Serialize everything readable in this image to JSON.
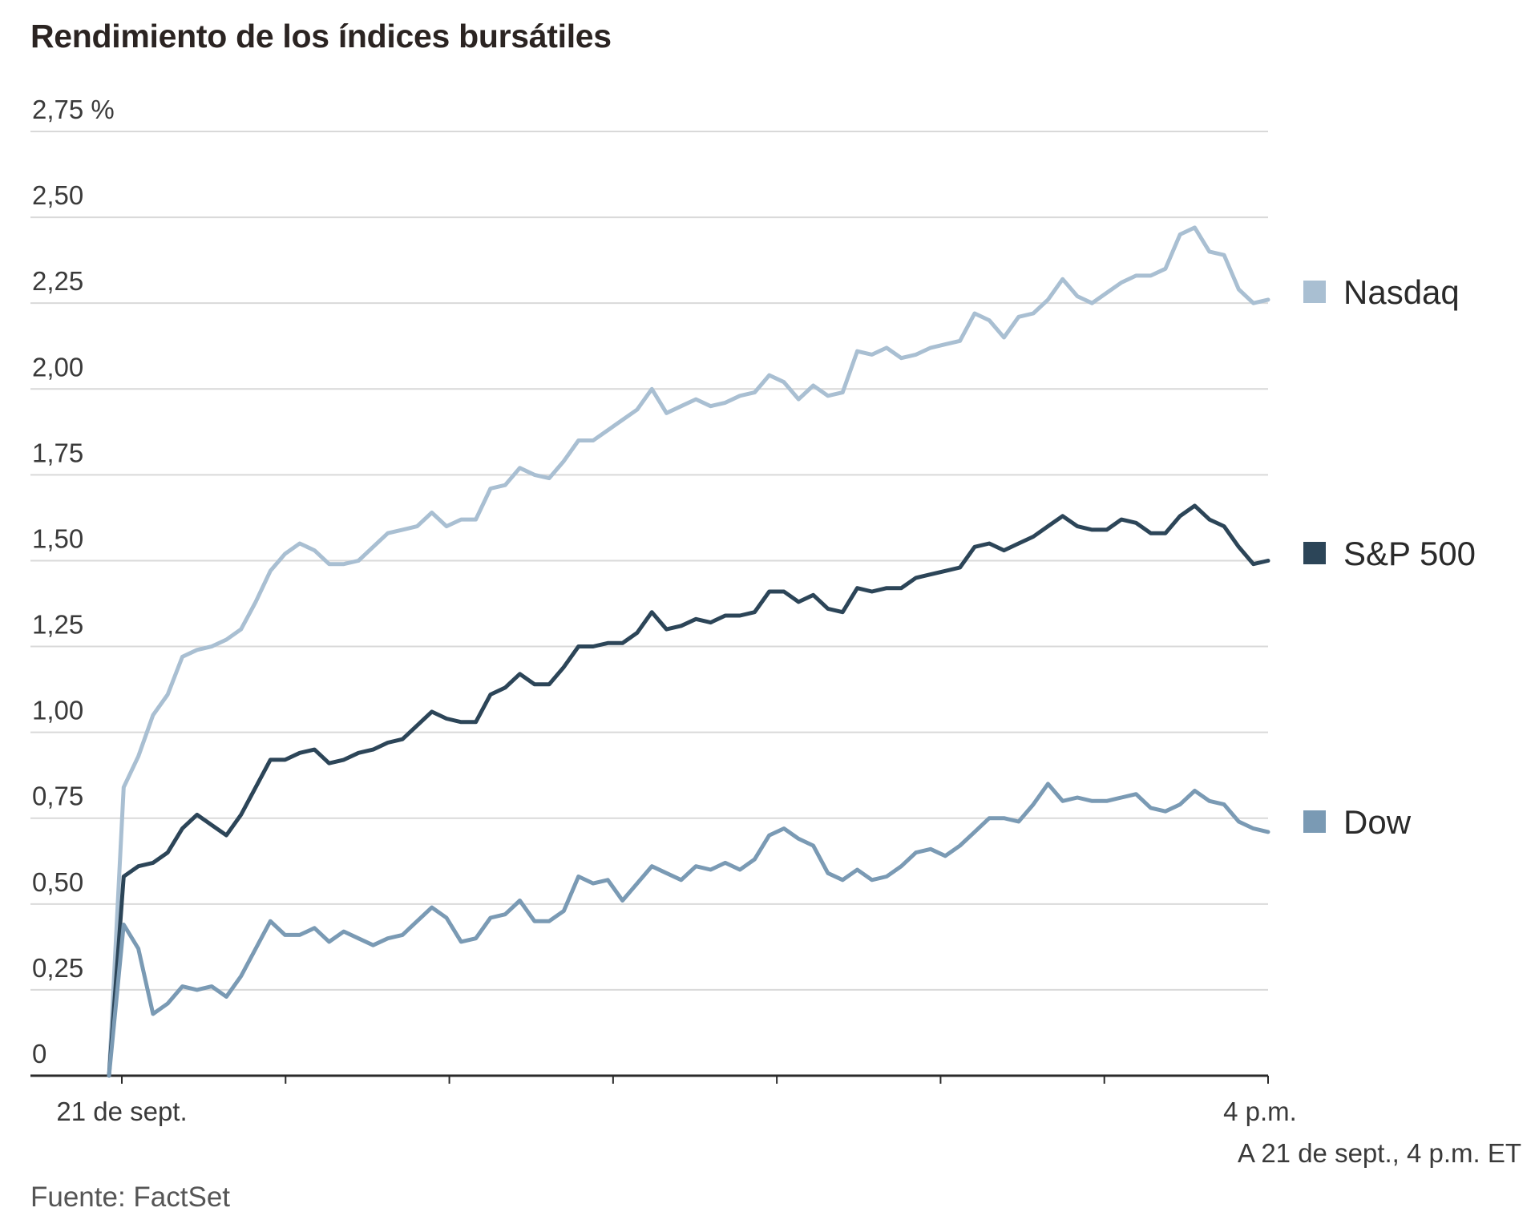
{
  "chart_data": {
    "type": "line",
    "title": "Rendimiento de los índices bursátiles",
    "xlabel": "",
    "ylabel": "",
    "ylim": [
      0,
      2.75
    ],
    "y_ticks": [
      {
        "value": 0,
        "label": "0"
      },
      {
        "value": 0.25,
        "label": "0,25"
      },
      {
        "value": 0.5,
        "label": "0,50"
      },
      {
        "value": 0.75,
        "label": "0,75"
      },
      {
        "value": 1.0,
        "label": "1,00"
      },
      {
        "value": 1.25,
        "label": "1,25"
      },
      {
        "value": 1.5,
        "label": "1,50"
      },
      {
        "value": 1.75,
        "label": "1,75"
      },
      {
        "value": 2.0,
        "label": "2,00"
      },
      {
        "value": 2.25,
        "label": "2,25"
      },
      {
        "value": 2.5,
        "label": "2,50"
      },
      {
        "value": 2.75,
        "label": "2,75 %"
      }
    ],
    "x_tick_labels": [
      "21 de sept.",
      "4 p.m."
    ],
    "grid": true,
    "legend_position": "right",
    "series": [
      {
        "name": "Nasdaq",
        "color": "#a9bfd2",
        "values": [
          0,
          0.84,
          0.93,
          1.05,
          1.11,
          1.22,
          1.24,
          1.25,
          1.27,
          1.3,
          1.38,
          1.47,
          1.52,
          1.55,
          1.53,
          1.49,
          1.49,
          1.5,
          1.54,
          1.58,
          1.59,
          1.6,
          1.64,
          1.6,
          1.62,
          1.62,
          1.71,
          1.72,
          1.77,
          1.75,
          1.74,
          1.79,
          1.85,
          1.85,
          1.88,
          1.91,
          1.94,
          2.0,
          1.93,
          1.95,
          1.97,
          1.95,
          1.96,
          1.98,
          1.99,
          2.04,
          2.02,
          1.97,
          2.01,
          1.98,
          1.99,
          2.11,
          2.1,
          2.12,
          2.09,
          2.1,
          2.12,
          2.13,
          2.14,
          2.22,
          2.2,
          2.15,
          2.21,
          2.22,
          2.26,
          2.32,
          2.27,
          2.25,
          2.28,
          2.31,
          2.33,
          2.33,
          2.35,
          2.45,
          2.47,
          2.4,
          2.39,
          2.29,
          2.25,
          2.26
        ]
      },
      {
        "name": "S&P 500",
        "color": "#2c4558",
        "values": [
          0,
          0.58,
          0.61,
          0.62,
          0.65,
          0.72,
          0.76,
          0.73,
          0.7,
          0.76,
          0.84,
          0.92,
          0.92,
          0.94,
          0.95,
          0.91,
          0.92,
          0.94,
          0.95,
          0.97,
          0.98,
          1.02,
          1.06,
          1.04,
          1.03,
          1.03,
          1.11,
          1.13,
          1.17,
          1.14,
          1.14,
          1.19,
          1.25,
          1.25,
          1.26,
          1.26,
          1.29,
          1.35,
          1.3,
          1.31,
          1.33,
          1.32,
          1.34,
          1.34,
          1.35,
          1.41,
          1.41,
          1.38,
          1.4,
          1.36,
          1.35,
          1.42,
          1.41,
          1.42,
          1.42,
          1.45,
          1.46,
          1.47,
          1.48,
          1.54,
          1.55,
          1.53,
          1.55,
          1.57,
          1.6,
          1.63,
          1.6,
          1.59,
          1.59,
          1.62,
          1.61,
          1.58,
          1.58,
          1.63,
          1.66,
          1.62,
          1.6,
          1.54,
          1.49,
          1.5
        ]
      },
      {
        "name": "Dow",
        "color": "#7a9ab4",
        "values": [
          0,
          0.44,
          0.37,
          0.18,
          0.21,
          0.26,
          0.25,
          0.26,
          0.23,
          0.29,
          0.37,
          0.45,
          0.41,
          0.41,
          0.43,
          0.39,
          0.42,
          0.4,
          0.38,
          0.4,
          0.41,
          0.45,
          0.49,
          0.46,
          0.39,
          0.4,
          0.46,
          0.47,
          0.51,
          0.45,
          0.45,
          0.48,
          0.58,
          0.56,
          0.57,
          0.51,
          0.56,
          0.61,
          0.59,
          0.57,
          0.61,
          0.6,
          0.62,
          0.6,
          0.63,
          0.7,
          0.72,
          0.69,
          0.67,
          0.59,
          0.57,
          0.6,
          0.57,
          0.58,
          0.61,
          0.65,
          0.66,
          0.64,
          0.67,
          0.71,
          0.75,
          0.75,
          0.74,
          0.79,
          0.85,
          0.8,
          0.81,
          0.8,
          0.8,
          0.81,
          0.82,
          0.78,
          0.77,
          0.79,
          0.83,
          0.8,
          0.79,
          0.74,
          0.72,
          0.71
        ]
      }
    ]
  },
  "annotations": {
    "as_of": "A 21 de sept., 4 p.m. ET",
    "source": "Fuente: FactSet"
  }
}
